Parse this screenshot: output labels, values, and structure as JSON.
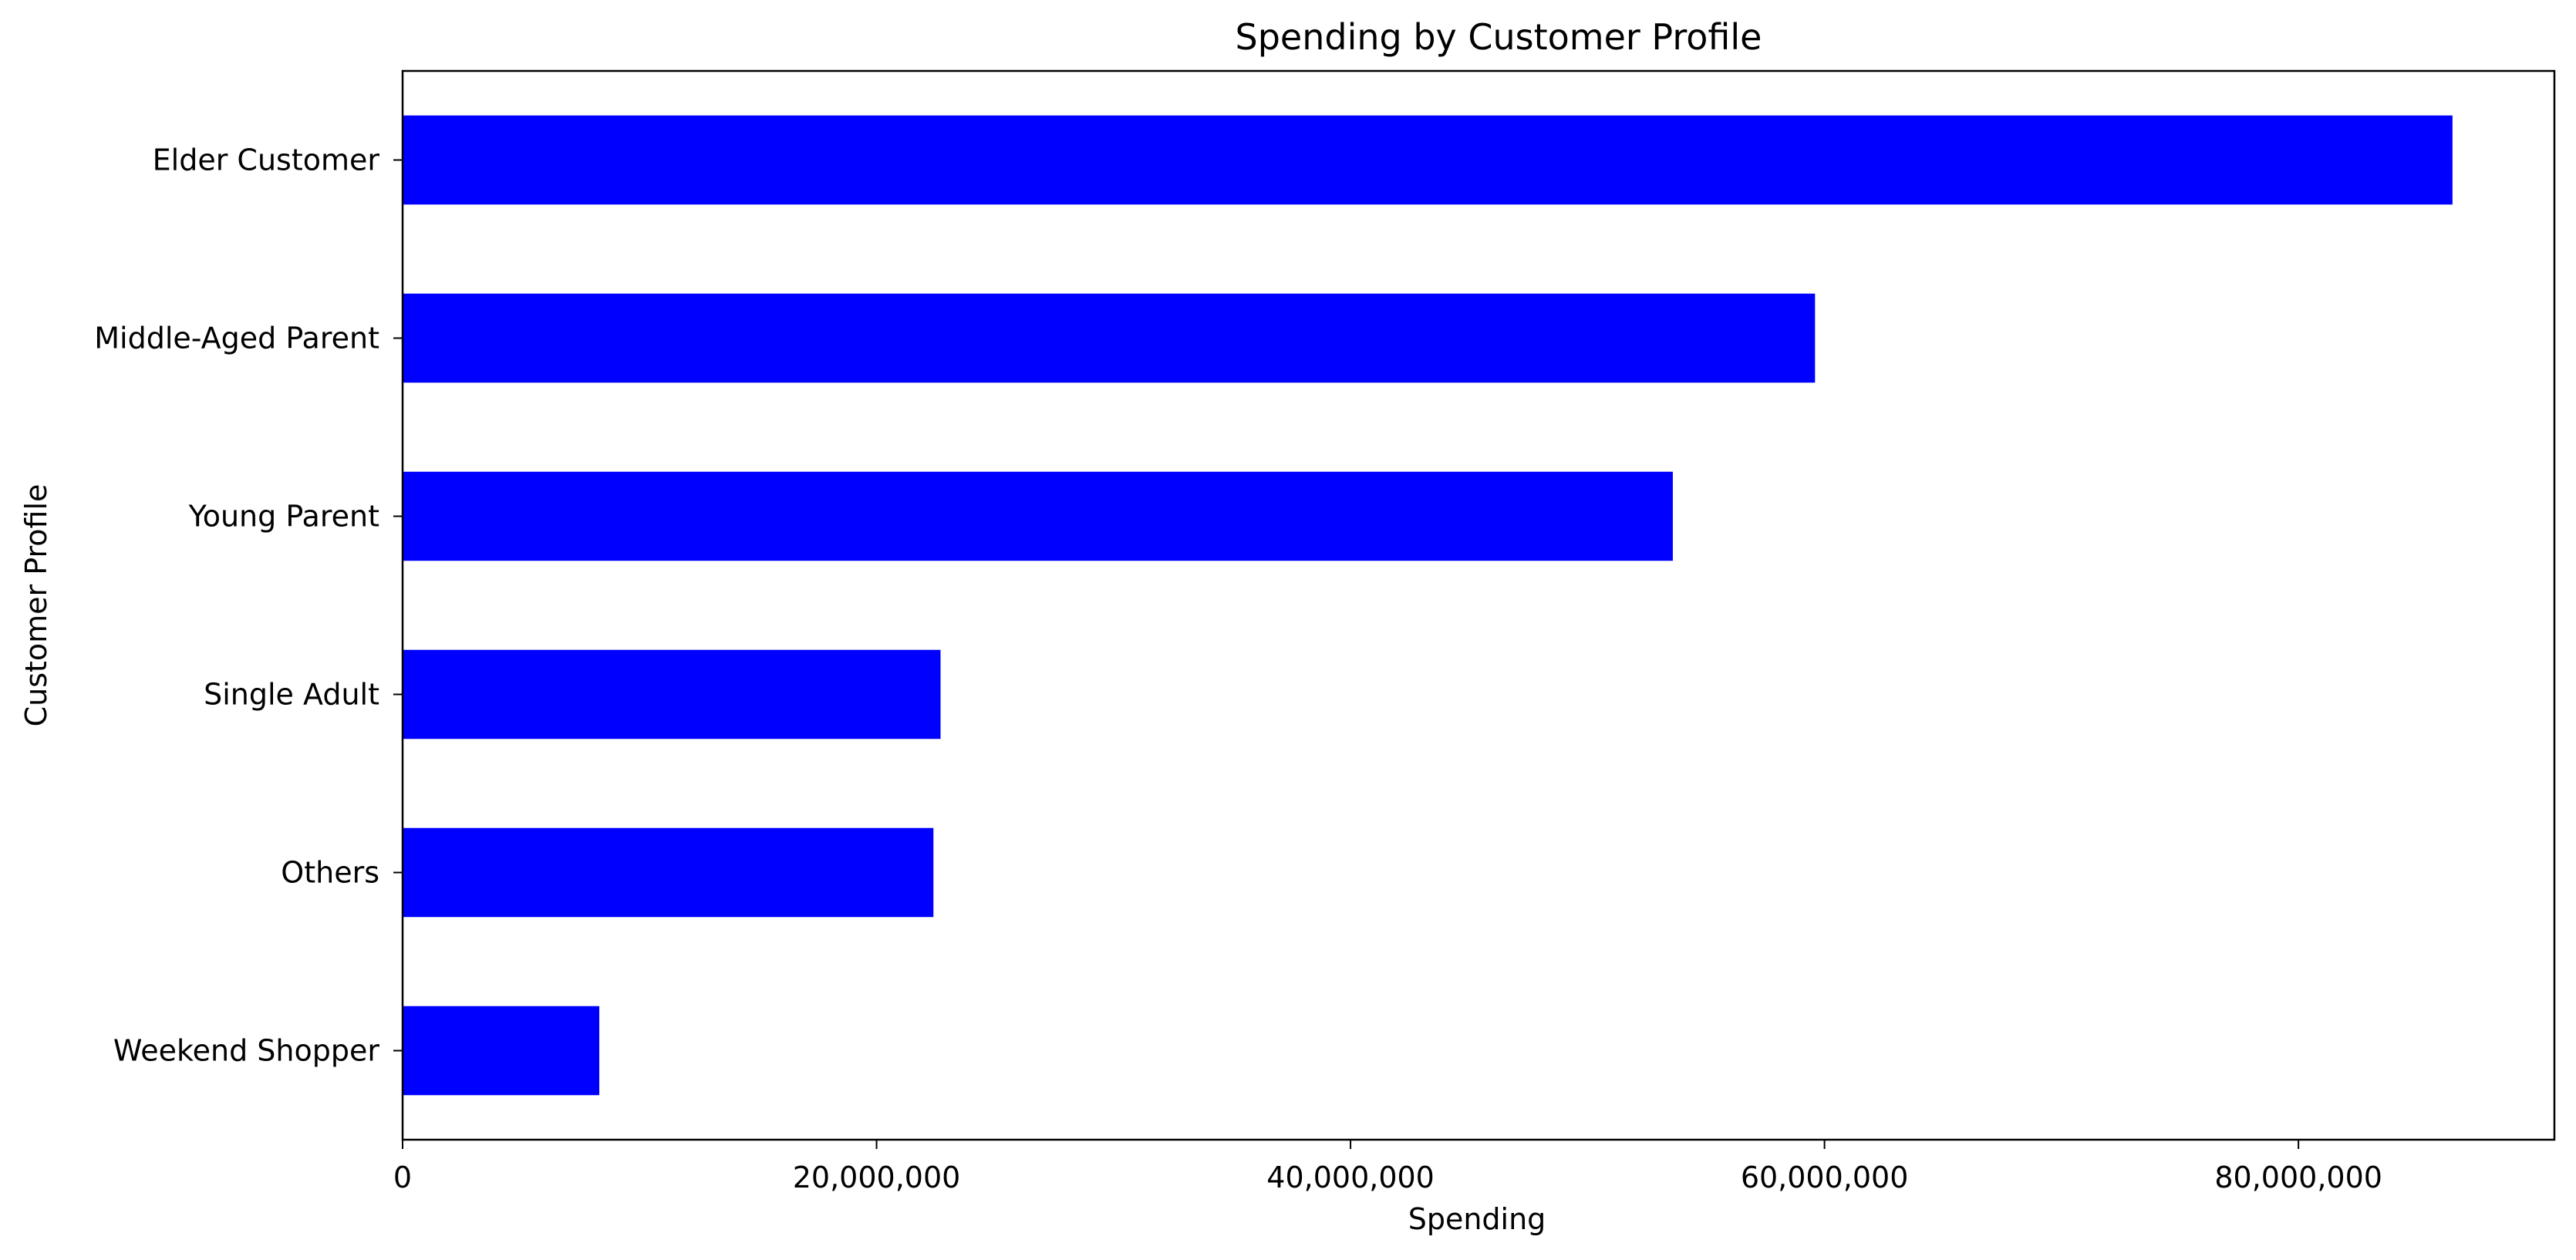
{
  "chart_data": {
    "type": "bar",
    "orientation": "horizontal",
    "title": "Spending by Customer Profile",
    "xlabel": "Spending",
    "ylabel": "Customer Profile",
    "categories": [
      "Elder Customer",
      "Middle-Aged Parent",
      "Young Parent",
      "Single Adult",
      "Others",
      "Weekend Shopper"
    ],
    "values": [
      86500000,
      59600000,
      53600000,
      22700000,
      22400000,
      8300000
    ],
    "xlim": [
      0,
      90800000
    ],
    "xticks": [
      0,
      20000000,
      40000000,
      60000000,
      80000000
    ],
    "xtick_labels": [
      "0",
      "20,000,000",
      "40,000,000",
      "60,000,000",
      "80,000,000"
    ],
    "bar_color": "#0000ff",
    "grid": false,
    "legend": "none"
  }
}
